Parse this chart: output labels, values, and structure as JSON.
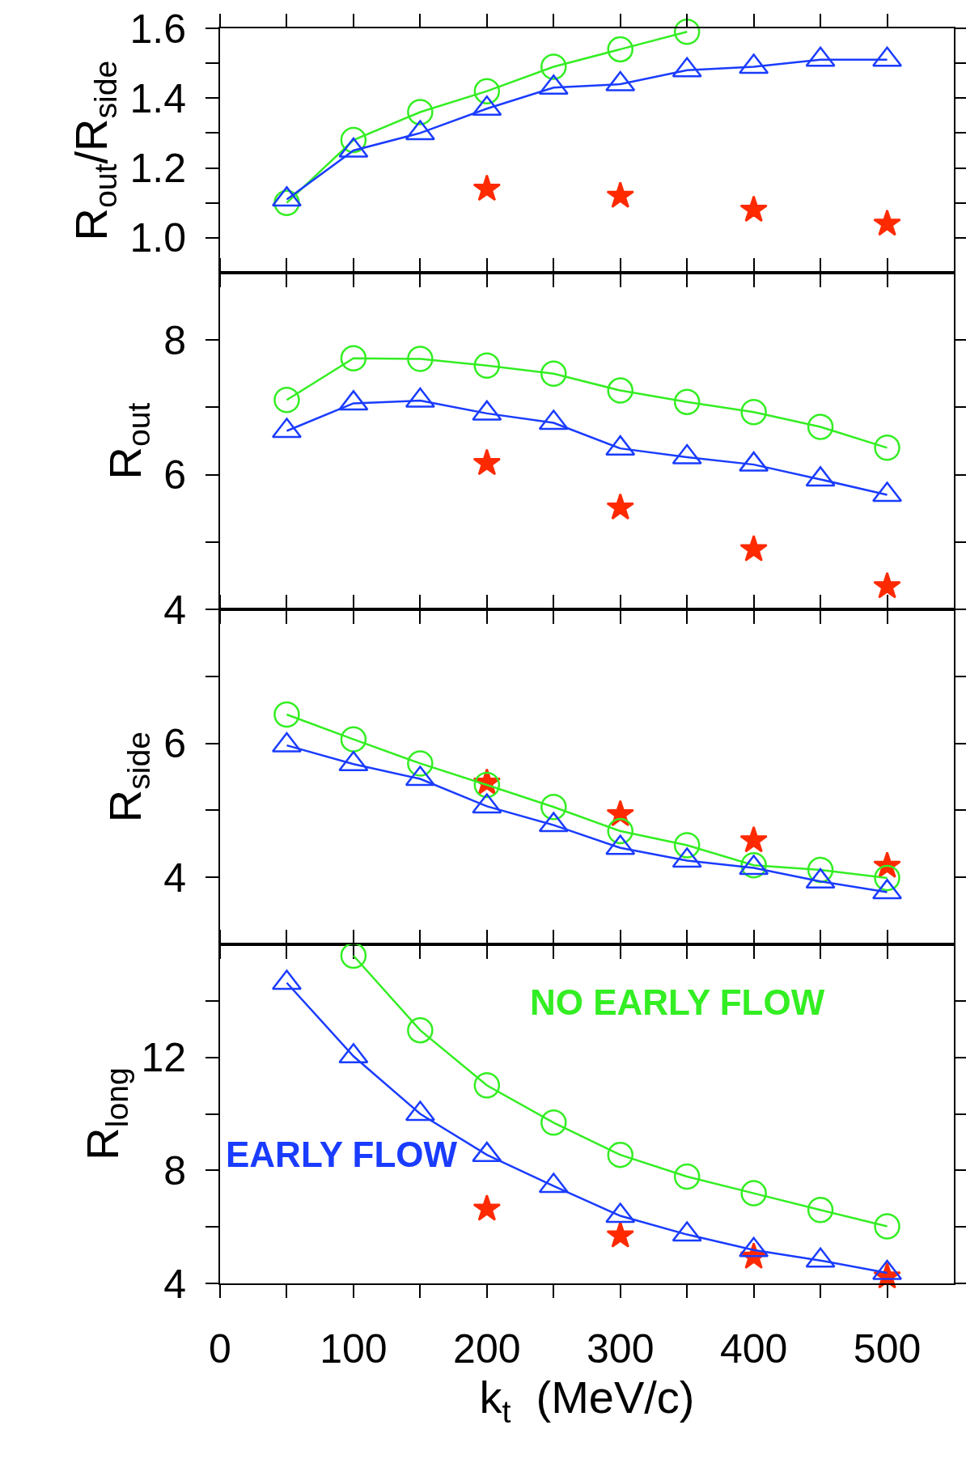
{
  "chart_data": [
    {
      "type": "line",
      "ylabel": "R$_{out}$/R$_{side}$",
      "tick_labels": "y",
      "xlim": [
        0,
        550
      ],
      "xticks": [
        0,
        {
          "value": 50,
          "label": null
        },
        100,
        {
          "value": 150,
          "label": null
        },
        200,
        {
          "value": 250,
          "label": null
        },
        300,
        {
          "value": 350,
          "label": null
        },
        400,
        {
          "value": 450,
          "label": null
        },
        500
      ],
      "ylim": [
        0.9,
        1.6
      ],
      "yticks": [
        {
          "value": 1,
          "label": "1.0"
        },
        {
          "value": 1.1,
          "label": null
        },
        1.2,
        {
          "value": 1.3,
          "label": null
        },
        1.4,
        {
          "value": 1.5,
          "label": null
        },
        1.6
      ],
      "x": [
        50,
        100,
        150,
        200,
        250,
        300,
        350,
        400,
        450,
        500
      ],
      "series": [
        {
          "type": "line",
          "marker": "circle",
          "color": "#33ee22",
          "values": [
            1.1,
            1.28,
            1.36,
            1.42,
            1.49,
            1.54,
            1.59,
            null,
            null,
            null
          ]
        },
        {
          "type": "line",
          "marker": "triangle",
          "color": "#1a3cff",
          "values": [
            1.11,
            1.25,
            1.3,
            1.37,
            1.43,
            1.44,
            1.48,
            1.49,
            1.51,
            1.51
          ]
        },
        {
          "type": "scatter",
          "marker": "star",
          "color": "#ff2a00",
          "values": [
            null,
            null,
            null,
            1.14,
            null,
            1.12,
            null,
            1.08,
            null,
            1.04
          ]
        }
      ]
    },
    {
      "type": "line",
      "ylabel": "R$_{out}$",
      "tick_labels": "y",
      "xlim": [
        0,
        550
      ],
      "xticks": [
        0,
        {
          "value": 50,
          "label": null
        },
        100,
        {
          "value": 150,
          "label": null
        },
        200,
        {
          "value": 250,
          "label": null
        },
        300,
        {
          "value": 350,
          "label": null
        },
        400,
        {
          "value": 450,
          "label": null
        },
        500
      ],
      "ylim": [
        4,
        9
      ],
      "yticks": [
        4,
        {
          "value": 5,
          "label": null
        },
        6,
        {
          "value": 7,
          "label": null
        },
        8
      ],
      "x": [
        50,
        100,
        150,
        200,
        250,
        300,
        350,
        400,
        450,
        500
      ],
      "series": [
        {
          "type": "line",
          "marker": "circle",
          "color": "#33ee22",
          "values": [
            7.11,
            7.73,
            7.72,
            7.62,
            7.5,
            7.25,
            7.08,
            6.93,
            6.71,
            6.4
          ]
        },
        {
          "type": "line",
          "marker": "triangle",
          "color": "#1a3cff",
          "values": [
            6.65,
            7.06,
            7.1,
            6.91,
            6.77,
            6.39,
            6.26,
            6.15,
            5.93,
            5.7
          ]
        },
        {
          "type": "scatter",
          "marker": "star",
          "color": "#ff2a00",
          "values": [
            null,
            null,
            null,
            6.17,
            null,
            5.51,
            null,
            4.89,
            null,
            4.34
          ]
        }
      ]
    },
    {
      "type": "line",
      "ylabel": "R$_{side}$",
      "tick_labels": "y",
      "xlim": [
        0,
        550
      ],
      "xticks": [
        0,
        {
          "value": 50,
          "label": null
        },
        100,
        {
          "value": 150,
          "label": null
        },
        200,
        {
          "value": 250,
          "label": null
        },
        300,
        {
          "value": 350,
          "label": null
        },
        400,
        {
          "value": 450,
          "label": null
        },
        500
      ],
      "ylim": [
        3,
        8
      ],
      "yticks": [
        4,
        {
          "value": 5,
          "label": null
        },
        6,
        {
          "value": 7,
          "label": null
        }
      ],
      "x": [
        50,
        100,
        150,
        200,
        250,
        300,
        350,
        400,
        450,
        500
      ],
      "series": [
        {
          "type": "line",
          "marker": "circle",
          "color": "#33ee22",
          "values": [
            6.43,
            6.06,
            5.7,
            5.38,
            5.05,
            4.69,
            4.48,
            4.18,
            4.11,
            3.99
          ]
        },
        {
          "type": "line",
          "marker": "triangle",
          "color": "#1a3cff",
          "values": [
            5.97,
            5.69,
            5.47,
            5.06,
            4.78,
            4.44,
            4.25,
            4.14,
            3.94,
            3.78
          ]
        },
        {
          "type": "scatter",
          "marker": "star",
          "color": "#ff2a00",
          "values": [
            null,
            null,
            null,
            5.41,
            null,
            4.94,
            null,
            4.55,
            null,
            4.17
          ]
        }
      ]
    },
    {
      "type": "line",
      "ylabel": "R$_{long}$",
      "xlabel": "k$_{t}$  (MeV/c)",
      "xlim": [
        0,
        550
      ],
      "xticks": [
        0,
        {
          "value": 50,
          "label": null
        },
        100,
        {
          "value": 150,
          "label": null
        },
        200,
        {
          "value": 250,
          "label": null
        },
        300,
        {
          "value": 350,
          "label": null
        },
        400,
        {
          "value": 450,
          "label": null
        },
        500
      ],
      "ylim": [
        4,
        16
      ],
      "yticks": [
        4,
        {
          "value": 6,
          "label": null
        },
        8,
        {
          "value": 10,
          "label": null
        },
        12,
        {
          "value": 14,
          "label": null
        }
      ],
      "x": [
        50,
        100,
        150,
        200,
        250,
        300,
        350,
        400,
        450,
        500
      ],
      "series": [
        {
          "type": "line",
          "name": "NO EARLY FLOW",
          "marker": "circle",
          "color": "#33ee22",
          "values": [
            null,
            15.6,
            12.96,
            11.01,
            9.69,
            8.55,
            7.78,
            7.19,
            6.6,
            6.02
          ]
        },
        {
          "type": "line",
          "name": "EARLY FLOW",
          "marker": "triangle",
          "color": "#1a3cff",
          "values": [
            14.64,
            12.04,
            10.0,
            8.55,
            7.45,
            6.39,
            5.73,
            5.18,
            4.81,
            4.37
          ]
        },
        {
          "type": "scatter",
          "marker": "star",
          "color": "#ff2a00",
          "values": [
            null,
            null,
            null,
            6.64,
            null,
            5.69,
            null,
            4.94,
            null,
            4.24
          ]
        }
      ]
    }
  ]
}
